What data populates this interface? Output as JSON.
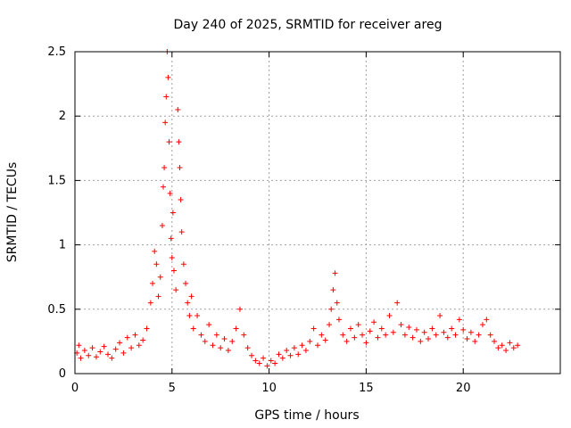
{
  "chart_data": {
    "type": "scatter",
    "title": "Day 240 of 2025, SRMTID for receiver areg",
    "xlabel": "GPS time / hours",
    "ylabel": "SRMTID / TECUs",
    "xlim": [
      0,
      25
    ],
    "ylim": [
      0,
      2.5
    ],
    "xticks": [
      0,
      5,
      10,
      15,
      20
    ],
    "xtick_labels": [
      "0",
      "5",
      "10",
      "15",
      "20"
    ],
    "yticks": [
      0,
      0.5,
      1,
      1.5,
      2,
      2.5
    ],
    "ytick_labels": [
      "0",
      "0.5",
      "1",
      "1.5",
      "2",
      "2.5"
    ],
    "grid": true,
    "marker": "+",
    "color": "#ff0000",
    "series": [
      {
        "name": "SRMTID",
        "points": [
          [
            0.1,
            0.16
          ],
          [
            0.2,
            0.22
          ],
          [
            0.3,
            0.12
          ],
          [
            0.5,
            0.18
          ],
          [
            0.7,
            0.14
          ],
          [
            0.9,
            0.2
          ],
          [
            1.1,
            0.13
          ],
          [
            1.3,
            0.17
          ],
          [
            1.5,
            0.21
          ],
          [
            1.7,
            0.15
          ],
          [
            1.9,
            0.12
          ],
          [
            2.1,
            0.19
          ],
          [
            2.3,
            0.24
          ],
          [
            2.5,
            0.16
          ],
          [
            2.7,
            0.28
          ],
          [
            2.9,
            0.2
          ],
          [
            3.1,
            0.3
          ],
          [
            3.3,
            0.22
          ],
          [
            3.5,
            0.26
          ],
          [
            3.7,
            0.35
          ],
          [
            3.9,
            0.55
          ],
          [
            4.0,
            0.7
          ],
          [
            4.1,
            0.95
          ],
          [
            4.2,
            0.85
          ],
          [
            4.3,
            0.6
          ],
          [
            4.4,
            0.75
          ],
          [
            4.5,
            1.15
          ],
          [
            4.55,
            1.45
          ],
          [
            4.6,
            1.6
          ],
          [
            4.65,
            1.95
          ],
          [
            4.7,
            2.15
          ],
          [
            4.75,
            2.5
          ],
          [
            4.8,
            2.3
          ],
          [
            4.85,
            1.8
          ],
          [
            4.9,
            1.4
          ],
          [
            4.95,
            1.05
          ],
          [
            5.0,
            0.9
          ],
          [
            5.05,
            1.25
          ],
          [
            5.1,
            0.8
          ],
          [
            5.2,
            0.65
          ],
          [
            5.3,
            2.05
          ],
          [
            5.35,
            1.8
          ],
          [
            5.4,
            1.6
          ],
          [
            5.45,
            1.35
          ],
          [
            5.5,
            1.1
          ],
          [
            5.6,
            0.85
          ],
          [
            5.7,
            0.7
          ],
          [
            5.8,
            0.55
          ],
          [
            5.9,
            0.45
          ],
          [
            6.0,
            0.6
          ],
          [
            6.1,
            0.35
          ],
          [
            6.3,
            0.45
          ],
          [
            6.5,
            0.3
          ],
          [
            6.7,
            0.25
          ],
          [
            6.9,
            0.38
          ],
          [
            7.1,
            0.22
          ],
          [
            7.3,
            0.3
          ],
          [
            7.5,
            0.2
          ],
          [
            7.7,
            0.27
          ],
          [
            7.9,
            0.18
          ],
          [
            8.1,
            0.25
          ],
          [
            8.3,
            0.35
          ],
          [
            8.5,
            0.5
          ],
          [
            8.7,
            0.3
          ],
          [
            8.9,
            0.2
          ],
          [
            9.1,
            0.14
          ],
          [
            9.3,
            0.1
          ],
          [
            9.5,
            0.08
          ],
          [
            9.7,
            0.12
          ],
          [
            9.9,
            0.06
          ],
          [
            10.1,
            0.1
          ],
          [
            10.3,
            0.08
          ],
          [
            10.5,
            0.15
          ],
          [
            10.7,
            0.12
          ],
          [
            10.9,
            0.18
          ],
          [
            11.1,
            0.14
          ],
          [
            11.3,
            0.2
          ],
          [
            11.5,
            0.15
          ],
          [
            11.7,
            0.22
          ],
          [
            11.9,
            0.18
          ],
          [
            12.1,
            0.25
          ],
          [
            12.3,
            0.35
          ],
          [
            12.5,
            0.22
          ],
          [
            12.7,
            0.3
          ],
          [
            12.9,
            0.26
          ],
          [
            13.1,
            0.38
          ],
          [
            13.2,
            0.5
          ],
          [
            13.3,
            0.65
          ],
          [
            13.4,
            0.78
          ],
          [
            13.5,
            0.55
          ],
          [
            13.6,
            0.42
          ],
          [
            13.8,
            0.3
          ],
          [
            14.0,
            0.25
          ],
          [
            14.2,
            0.35
          ],
          [
            14.4,
            0.28
          ],
          [
            14.6,
            0.38
          ],
          [
            14.8,
            0.3
          ],
          [
            15.0,
            0.24
          ],
          [
            15.2,
            0.33
          ],
          [
            15.4,
            0.4
          ],
          [
            15.6,
            0.28
          ],
          [
            15.8,
            0.35
          ],
          [
            16.0,
            0.3
          ],
          [
            16.2,
            0.45
          ],
          [
            16.4,
            0.32
          ],
          [
            16.6,
            0.55
          ],
          [
            16.8,
            0.38
          ],
          [
            17.0,
            0.3
          ],
          [
            17.2,
            0.36
          ],
          [
            17.4,
            0.28
          ],
          [
            17.6,
            0.34
          ],
          [
            17.8,
            0.25
          ],
          [
            18.0,
            0.32
          ],
          [
            18.2,
            0.27
          ],
          [
            18.4,
            0.35
          ],
          [
            18.6,
            0.3
          ],
          [
            18.8,
            0.45
          ],
          [
            19.0,
            0.32
          ],
          [
            19.2,
            0.28
          ],
          [
            19.4,
            0.35
          ],
          [
            19.6,
            0.3
          ],
          [
            19.8,
            0.42
          ],
          [
            20.0,
            0.34
          ],
          [
            20.2,
            0.27
          ],
          [
            20.4,
            0.32
          ],
          [
            20.6,
            0.25
          ],
          [
            20.8,
            0.3
          ],
          [
            21.0,
            0.38
          ],
          [
            21.2,
            0.42
          ],
          [
            21.4,
            0.3
          ],
          [
            21.6,
            0.25
          ],
          [
            21.8,
            0.2
          ],
          [
            22.0,
            0.22
          ],
          [
            22.2,
            0.18
          ],
          [
            22.4,
            0.24
          ],
          [
            22.6,
            0.2
          ],
          [
            22.8,
            0.22
          ]
        ]
      }
    ]
  }
}
